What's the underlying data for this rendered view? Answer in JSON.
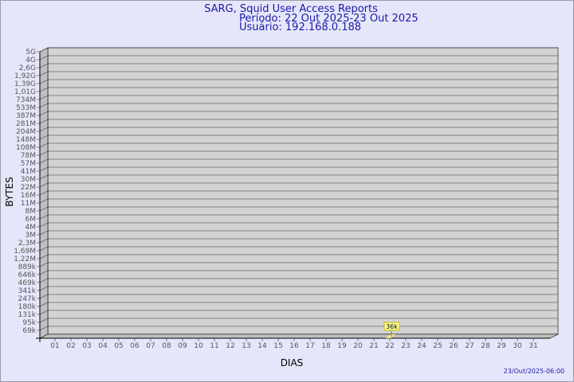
{
  "chart_data": {
    "type": "bar",
    "title": "SARG, Squid User Access Reports",
    "subtitle": [
      "Período: 22 Out 2025-23 Out 2025",
      "Usuário: 192.168.0.188"
    ],
    "xlabel": "DIAS",
    "ylabel": "BYTES",
    "yscale": "log",
    "y_tick_labels": [
      "5G",
      "4G",
      "2,6G",
      "1,92G",
      "1,39G",
      "1,01G",
      "734M",
      "533M",
      "387M",
      "281M",
      "204M",
      "148M",
      "108M",
      "78M",
      "57M",
      "41M",
      "30M",
      "22M",
      "16M",
      "11M",
      "8M",
      "6M",
      "4M",
      "3M",
      "2,3M",
      "1,69M",
      "1,22M",
      "889k",
      "646k",
      "469k",
      "341k",
      "247k",
      "180k",
      "131k",
      "95k",
      "69k"
    ],
    "categories": [
      "01",
      "02",
      "03",
      "04",
      "05",
      "06",
      "07",
      "08",
      "09",
      "10",
      "11",
      "12",
      "13",
      "14",
      "15",
      "16",
      "17",
      "18",
      "19",
      "20",
      "21",
      "22",
      "23",
      "24",
      "25",
      "26",
      "27",
      "28",
      "29",
      "30",
      "31"
    ],
    "values": [
      {
        "x": "22",
        "y": 36000,
        "label": "36k"
      }
    ],
    "grid": true,
    "colors": {
      "plot": "#d3d3d3",
      "wall": "#c0c0c0",
      "bar": "#ffe680",
      "label_bg": "#ffffa0",
      "label_border": "#c8b400",
      "title": "#1a1aa8"
    },
    "timestamp": "23/Out/2025-06:00"
  }
}
